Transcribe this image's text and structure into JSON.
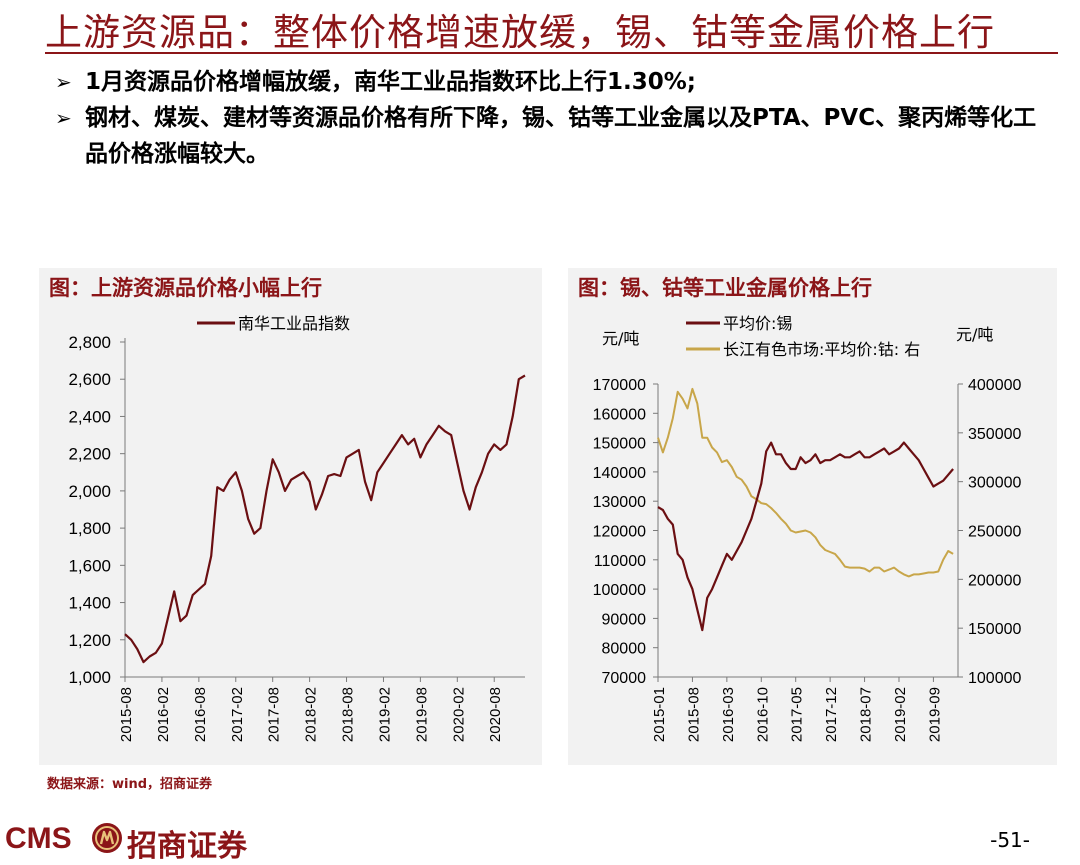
{
  "slide": {
    "title": "上游资源品：整体价格增速放缓，锡、钴等金属价格上行",
    "bullets": [
      "1月资源品价格增幅放缓，南华工业品指数环比上行1.30%;",
      "钢材、煤炭、建材等资源品价格有所下降，锡、钴等工业金属以及PTA、PVC、聚丙烯等化工品价格涨幅较大。"
    ],
    "source": "数据来源：wind，招商证券",
    "page_number": "-51-",
    "logo": {
      "cms": "CMS",
      "brand": "招商证券",
      "emblem_icon": "cms-emblem-icon"
    }
  },
  "colors": {
    "brand": "#8b1518",
    "series_dark_red": "#6b0f12",
    "series_gold": "#c8a64a",
    "panel_bg": "#f2f2f2"
  },
  "chart_data": [
    {
      "type": "line",
      "panel_title": "图：上游资源品价格小幅上行",
      "title": "",
      "xlabel": "",
      "ylabel": "",
      "grid": false,
      "legend_position": "top",
      "ylim": [
        1000,
        2800
      ],
      "yticks": [
        "1,000",
        "1,200",
        "1,400",
        "1,600",
        "1,800",
        "2,000",
        "2,200",
        "2,400",
        "2,600",
        "2,800"
      ],
      "xticks": [
        "2015-08",
        "2016-02",
        "2016-08",
        "2017-02",
        "2017-08",
        "2018-02",
        "2018-08",
        "2019-02",
        "2019-08",
        "2020-02",
        "2020-08"
      ],
      "x_range": [
        "2015-08",
        "2021-01"
      ],
      "series": [
        {
          "name": "南华工业品指数",
          "color": "#6b0f12",
          "points": [
            [
              "2015-08",
              1230
            ],
            [
              "2015-09",
              1200
            ],
            [
              "2015-10",
              1150
            ],
            [
              "2015-11",
              1080
            ],
            [
              "2015-12",
              1110
            ],
            [
              "2016-01",
              1130
            ],
            [
              "2016-02",
              1180
            ],
            [
              "2016-03",
              1320
            ],
            [
              "2016-04",
              1460
            ],
            [
              "2016-05",
              1300
            ],
            [
              "2016-06",
              1330
            ],
            [
              "2016-07",
              1440
            ],
            [
              "2016-08",
              1470
            ],
            [
              "2016-09",
              1500
            ],
            [
              "2016-10",
              1650
            ],
            [
              "2016-11",
              2020
            ],
            [
              "2016-12",
              2000
            ],
            [
              "2017-01",
              2060
            ],
            [
              "2017-02",
              2100
            ],
            [
              "2017-03",
              2000
            ],
            [
              "2017-04",
              1850
            ],
            [
              "2017-05",
              1770
            ],
            [
              "2017-06",
              1800
            ],
            [
              "2017-07",
              2000
            ],
            [
              "2017-08",
              2170
            ],
            [
              "2017-09",
              2100
            ],
            [
              "2017-10",
              2000
            ],
            [
              "2017-11",
              2060
            ],
            [
              "2017-12",
              2080
            ],
            [
              "2018-01",
              2100
            ],
            [
              "2018-02",
              2050
            ],
            [
              "2018-03",
              1900
            ],
            [
              "2018-04",
              1980
            ],
            [
              "2018-05",
              2080
            ],
            [
              "2018-06",
              2090
            ],
            [
              "2018-07",
              2080
            ],
            [
              "2018-08",
              2180
            ],
            [
              "2018-09",
              2200
            ],
            [
              "2018-10",
              2220
            ],
            [
              "2018-11",
              2050
            ],
            [
              "2018-12",
              1950
            ],
            [
              "2019-01",
              2100
            ],
            [
              "2019-02",
              2150
            ],
            [
              "2019-03",
              2200
            ],
            [
              "2019-04",
              2250
            ],
            [
              "2019-05",
              2300
            ],
            [
              "2019-06",
              2250
            ],
            [
              "2019-07",
              2280
            ],
            [
              "2019-08",
              2180
            ],
            [
              "2019-09",
              2250
            ],
            [
              "2019-10",
              2300
            ],
            [
              "2019-11",
              2350
            ],
            [
              "2019-12",
              2320
            ],
            [
              "2020-01",
              2300
            ],
            [
              "2020-02",
              2150
            ],
            [
              "2020-03",
              2000
            ],
            [
              "2020-04",
              1900
            ],
            [
              "2020-05",
              2020
            ],
            [
              "2020-06",
              2100
            ],
            [
              "2020-07",
              2200
            ],
            [
              "2020-08",
              2250
            ],
            [
              "2020-09",
              2220
            ],
            [
              "2020-10",
              2250
            ],
            [
              "2020-11",
              2400
            ],
            [
              "2020-12",
              2600
            ],
            [
              "2021-01",
              2620
            ]
          ]
        }
      ]
    },
    {
      "type": "line",
      "panel_title": "图：锡、钴等工业金属价格上行",
      "title": "",
      "xlabel": "",
      "grid": false,
      "legend_position": "top",
      "y_left_label": "元/吨",
      "y_right_label": "元/吨",
      "ylim_left": [
        70000,
        170000
      ],
      "ylim_right": [
        100000,
        400000
      ],
      "yticks_left": [
        "70000",
        "80000",
        "90000",
        "100000",
        "110000",
        "120000",
        "130000",
        "140000",
        "150000",
        "160000",
        "170000"
      ],
      "yticks_right": [
        "100000",
        "150000",
        "200000",
        "250000",
        "300000",
        "350000",
        "400000"
      ],
      "xticks": [
        "2015-01",
        "2015-08",
        "2016-03",
        "2016-10",
        "2017-05",
        "2017-12",
        "2018-07",
        "2019-02",
        "2019-09"
      ],
      "x_range": [
        "2015-01",
        "2020-02"
      ],
      "series": [
        {
          "name": "平均价:锡",
          "axis": "left",
          "color": "#6b0f12",
          "points": [
            [
              "2015-01",
              128000
            ],
            [
              "2015-02",
              127000
            ],
            [
              "2015-03",
              124000
            ],
            [
              "2015-04",
              122000
            ],
            [
              "2015-05",
              112000
            ],
            [
              "2015-06",
              110000
            ],
            [
              "2015-07",
              104000
            ],
            [
              "2015-08",
              100000
            ],
            [
              "2015-09",
              93000
            ],
            [
              "2015-10",
              86000
            ],
            [
              "2015-11",
              97000
            ],
            [
              "2015-12",
              100000
            ],
            [
              "2016-01",
              104000
            ],
            [
              "2016-02",
              108000
            ],
            [
              "2016-03",
              112000
            ],
            [
              "2016-04",
              110000
            ],
            [
              "2016-05",
              113000
            ],
            [
              "2016-06",
              116000
            ],
            [
              "2016-07",
              120000
            ],
            [
              "2016-08",
              124000
            ],
            [
              "2016-09",
              130000
            ],
            [
              "2016-10",
              136000
            ],
            [
              "2016-11",
              147000
            ],
            [
              "2016-12",
              150000
            ],
            [
              "2017-01",
              146000
            ],
            [
              "2017-02",
              146000
            ],
            [
              "2017-03",
              143000
            ],
            [
              "2017-04",
              141000
            ],
            [
              "2017-05",
              141000
            ],
            [
              "2017-06",
              145000
            ],
            [
              "2017-07",
              143000
            ],
            [
              "2017-08",
              144000
            ],
            [
              "2017-09",
              146000
            ],
            [
              "2017-10",
              143000
            ],
            [
              "2017-11",
              144000
            ],
            [
              "2017-12",
              144000
            ],
            [
              "2018-01",
              145000
            ],
            [
              "2018-02",
              146000
            ],
            [
              "2018-03",
              145000
            ],
            [
              "2018-04",
              145000
            ],
            [
              "2018-05",
              146000
            ],
            [
              "2018-06",
              147000
            ],
            [
              "2018-07",
              145000
            ],
            [
              "2018-08",
              145000
            ],
            [
              "2018-09",
              146000
            ],
            [
              "2018-10",
              147000
            ],
            [
              "2018-11",
              148000
            ],
            [
              "2018-12",
              146000
            ],
            [
              "2019-01",
              147000
            ],
            [
              "2019-02",
              148000
            ],
            [
              "2019-03",
              150000
            ],
            [
              "2019-04",
              148000
            ],
            [
              "2019-05",
              146000
            ],
            [
              "2019-06",
              144000
            ],
            [
              "2019-07",
              141000
            ],
            [
              "2019-08",
              138000
            ],
            [
              "2019-09",
              135000
            ],
            [
              "2019-10",
              136000
            ],
            [
              "2019-11",
              137000
            ],
            [
              "2019-12",
              139000
            ],
            [
              "2020-01",
              141000
            ]
          ]
        },
        {
          "name": "长江有色市场:平均价:钴: 右",
          "axis": "right",
          "color": "#c8a64a",
          "points": [
            [
              "2015-01",
              345000
            ],
            [
              "2015-02",
              330000
            ],
            [
              "2015-03",
              345000
            ],
            [
              "2015-04",
              365000
            ],
            [
              "2015-05",
              392000
            ],
            [
              "2015-06",
              385000
            ],
            [
              "2015-07",
              375000
            ],
            [
              "2015-08",
              395000
            ],
            [
              "2015-09",
              380000
            ],
            [
              "2015-10",
              345000
            ],
            [
              "2015-11",
              345000
            ],
            [
              "2015-12",
              335000
            ],
            [
              "2016-01",
              330000
            ],
            [
              "2016-02",
              320000
            ],
            [
              "2016-03",
              322000
            ],
            [
              "2016-04",
              315000
            ],
            [
              "2016-05",
              305000
            ],
            [
              "2016-06",
              302000
            ],
            [
              "2016-07",
              295000
            ],
            [
              "2016-08",
              285000
            ],
            [
              "2016-09",
              282000
            ],
            [
              "2016-10",
              278000
            ],
            [
              "2016-11",
              277000
            ],
            [
              "2016-12",
              273000
            ],
            [
              "2017-01",
              268000
            ],
            [
              "2017-02",
              262000
            ],
            [
              "2017-03",
              257000
            ],
            [
              "2017-04",
              250000
            ],
            [
              "2017-05",
              248000
            ],
            [
              "2017-06",
              249000
            ],
            [
              "2017-07",
              250000
            ],
            [
              "2017-08",
              248000
            ],
            [
              "2017-09",
              243000
            ],
            [
              "2017-10",
              235000
            ],
            [
              "2017-11",
              230000
            ],
            [
              "2017-12",
              228000
            ],
            [
              "2018-01",
              226000
            ],
            [
              "2018-02",
              220000
            ],
            [
              "2018-03",
              213000
            ],
            [
              "2018-04",
              212000
            ],
            [
              "2018-05",
              212000
            ],
            [
              "2018-06",
              212000
            ],
            [
              "2018-07",
              211000
            ],
            [
              "2018-08",
              208000
            ],
            [
              "2018-09",
              212000
            ],
            [
              "2018-10",
              212000
            ],
            [
              "2018-11",
              208000
            ],
            [
              "2018-12",
              210000
            ],
            [
              "2019-01",
              212000
            ],
            [
              "2019-02",
              208000
            ],
            [
              "2019-03",
              205000
            ],
            [
              "2019-04",
              203000
            ],
            [
              "2019-05",
              205000
            ],
            [
              "2019-06",
              205000
            ],
            [
              "2019-07",
              206000
            ],
            [
              "2019-08",
              207000
            ],
            [
              "2019-09",
              207000
            ],
            [
              "2019-10",
              208000
            ],
            [
              "2019-11",
              220000
            ],
            [
              "2019-12",
              229000
            ],
            [
              "2020-01",
              226000
            ]
          ]
        }
      ]
    }
  ]
}
